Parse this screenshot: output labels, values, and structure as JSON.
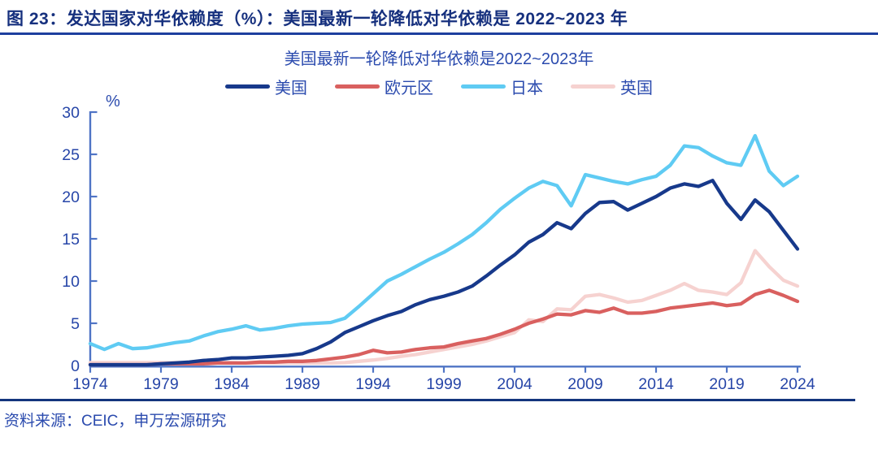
{
  "header": {
    "title": "图 23：发达国家对华依赖度（%）：美国最新一轮降低对华依赖是 2022~2023 年"
  },
  "source": {
    "text": "资料来源：CEIC，申万宏源研究"
  },
  "colors": {
    "title_navy": "#16307e",
    "underline_blue": "#1d3f9e",
    "text_blue": "#2b4bae",
    "axis_blue": "#4f74c5",
    "tick_label_blue": "#2746a8",
    "divider_navy": "#14357d",
    "background": "#ffffff"
  },
  "chart_data": {
    "type": "line",
    "title": "美国最新一轮降低对华依赖是2022~2023年",
    "subtitle": "美国最新一轮降低对华依赖是2022~2023年",
    "xlabel": "",
    "ylabel": "%",
    "ylim": [
      0,
      30
    ],
    "yticks": [
      0,
      5,
      10,
      15,
      20,
      25,
      30
    ],
    "xticks": [
      1974,
      1979,
      1984,
      1989,
      1994,
      1999,
      2004,
      2009,
      2014,
      2019,
      2024
    ],
    "grid": false,
    "legend_position": "top",
    "x": [
      1974,
      1975,
      1976,
      1977,
      1978,
      1979,
      1980,
      1981,
      1982,
      1983,
      1984,
      1985,
      1986,
      1987,
      1988,
      1989,
      1990,
      1991,
      1992,
      1993,
      1994,
      1995,
      1996,
      1997,
      1998,
      1999,
      2000,
      2001,
      2002,
      2003,
      2004,
      2005,
      2006,
      2007,
      2008,
      2009,
      2010,
      2011,
      2012,
      2013,
      2014,
      2015,
      2016,
      2017,
      2018,
      2019,
      2020,
      2021,
      2022,
      2023,
      2024
    ],
    "series": [
      {
        "id": "us",
        "name": "美国",
        "color": "#17398b",
        "values": [
          0.1,
          0.1,
          0.1,
          0.1,
          0.1,
          0.2,
          0.3,
          0.4,
          0.6,
          0.7,
          0.9,
          0.9,
          1.0,
          1.1,
          1.2,
          1.4,
          2.0,
          2.8,
          3.9,
          4.6,
          5.3,
          5.9,
          6.4,
          7.2,
          7.8,
          8.2,
          8.7,
          9.4,
          10.6,
          11.9,
          13.1,
          14.6,
          15.5,
          16.9,
          16.2,
          18.0,
          19.3,
          19.4,
          18.4,
          19.2,
          20.0,
          21.0,
          21.5,
          21.2,
          21.9,
          19.2,
          17.3,
          19.6,
          18.2,
          16.0,
          13.8
        ]
      },
      {
        "id": "eurozone",
        "name": "欧元区",
        "color": "#d9605f",
        "values": [
          0.1,
          0.1,
          0.1,
          0.1,
          0.1,
          0.2,
          0.2,
          0.2,
          0.2,
          0.3,
          0.3,
          0.3,
          0.4,
          0.4,
          0.5,
          0.5,
          0.6,
          0.8,
          1.0,
          1.3,
          1.8,
          1.5,
          1.6,
          1.9,
          2.1,
          2.2,
          2.6,
          2.9,
          3.2,
          3.7,
          4.3,
          5.0,
          5.5,
          6.1,
          6.0,
          6.5,
          6.3,
          6.8,
          6.2,
          6.2,
          6.4,
          6.8,
          7.0,
          7.2,
          7.4,
          7.1,
          7.3,
          8.4,
          8.9,
          8.3,
          7.6
        ]
      },
      {
        "id": "japan",
        "name": "日本",
        "color": "#5fcbf3",
        "values": [
          2.6,
          1.9,
          2.6,
          2.0,
          2.1,
          2.4,
          2.7,
          2.9,
          3.5,
          4.0,
          4.3,
          4.7,
          4.2,
          4.4,
          4.7,
          4.9,
          5.0,
          5.1,
          5.6,
          7.0,
          8.5,
          10.0,
          10.8,
          11.7,
          12.6,
          13.4,
          14.4,
          15.5,
          16.9,
          18.5,
          19.8,
          21.0,
          21.8,
          21.3,
          18.9,
          22.6,
          22.2,
          21.8,
          21.5,
          22.0,
          22.4,
          23.7,
          26.0,
          25.8,
          24.8,
          24.0,
          23.7,
          27.2,
          23.0,
          21.3,
          22.4
        ]
      },
      {
        "id": "uk",
        "name": "英国",
        "color": "#f6d2d0",
        "values": [
          0.35,
          0.35,
          0.35,
          0.35,
          0.35,
          0.35,
          0.35,
          0.35,
          0.35,
          0.35,
          0.35,
          0.3,
          0.3,
          0.3,
          0.3,
          0.3,
          0.3,
          0.3,
          0.35,
          0.5,
          0.65,
          0.85,
          1.1,
          1.3,
          1.6,
          1.9,
          2.2,
          2.5,
          2.9,
          3.4,
          3.9,
          5.4,
          5.2,
          6.7,
          6.6,
          8.2,
          8.4,
          8.0,
          7.5,
          7.7,
          8.3,
          8.9,
          9.7,
          8.9,
          8.7,
          8.4,
          9.8,
          13.6,
          11.7,
          10.1,
          9.4
        ]
      }
    ]
  }
}
